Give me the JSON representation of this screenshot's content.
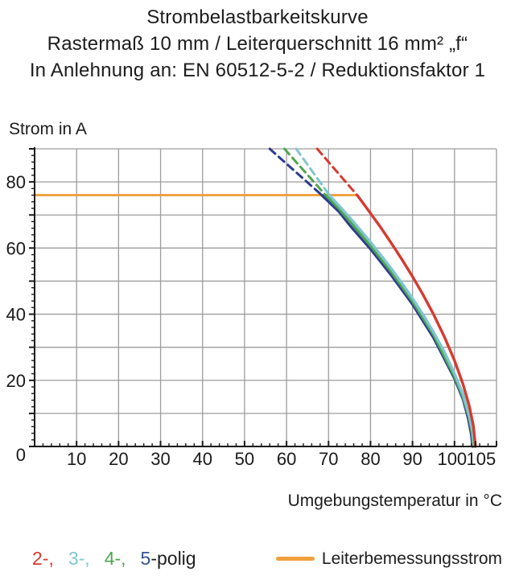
{
  "header": {
    "line1": "Strombelastbarkeitskurve",
    "line2": "Rastermaß 10 mm / Leiterquerschnitt 16 mm² „f“",
    "line3": "In Anlehnung an: EN 60512-5-2 / Reduktionsfaktor 1"
  },
  "chart_data": {
    "type": "line",
    "title": "Strombelastbarkeitskurve",
    "xlabel": "Umgebungstemperatur in °C",
    "ylabel": "Strom in A",
    "xlim": [
      0,
      110
    ],
    "ylim": [
      0,
      90
    ],
    "grid": true,
    "grid_step": 10,
    "minor_tick_step": 2,
    "x_tick_labels": [
      10,
      20,
      30,
      40,
      50,
      60,
      70,
      80,
      90,
      100,
      105
    ],
    "y_tick_labels": [
      0,
      20,
      40,
      60,
      80
    ],
    "grid_color": "#9c9c9c",
    "axis_color": "#1a1a1a",
    "legend_position": "bottom",
    "rated_current_line": {
      "label": "Leiterbemessungsstrom",
      "value": 76,
      "x_start": 0,
      "x_end": 76.8,
      "color": "#f0a03c"
    },
    "series": [
      {
        "name": "5-polig",
        "color": "#2e3b90",
        "dashed": [
          [
            56.0,
            90
          ],
          [
            68.4,
            76
          ]
        ],
        "solid": [
          [
            68.4,
            76
          ],
          [
            72.5,
            71.0
          ],
          [
            75,
            67.0
          ],
          [
            80,
            59.7
          ],
          [
            85,
            51.7
          ],
          [
            90,
            43.0
          ],
          [
            95,
            32.9
          ],
          [
            100,
            20.6
          ],
          [
            102,
            14.4
          ],
          [
            103.3,
            8.4
          ],
          [
            104,
            3.6
          ],
          [
            104.3,
            0
          ]
        ]
      },
      {
        "name": "4-polig",
        "color": "#4fa64d",
        "dashed": [
          [
            59.5,
            90
          ],
          [
            69.3,
            76
          ]
        ],
        "solid": [
          [
            69.3,
            76
          ],
          [
            72.5,
            71.9
          ],
          [
            75,
            68.1
          ],
          [
            80,
            60.7
          ],
          [
            85,
            52.7
          ],
          [
            90,
            43.9
          ],
          [
            95,
            33.8
          ],
          [
            100,
            21.2
          ],
          [
            102,
            15.0
          ],
          [
            103.5,
            8.6
          ],
          [
            104.2,
            3.8
          ],
          [
            104.5,
            0
          ]
        ]
      },
      {
        "name": "3-polig",
        "color": "#80c5d2",
        "dashed": [
          [
            62.3,
            90
          ],
          [
            70.2,
            76
          ]
        ],
        "solid": [
          [
            70.2,
            76
          ],
          [
            72.5,
            72.8
          ],
          [
            75,
            69.3
          ],
          [
            77.5,
            65.6
          ],
          [
            80,
            61.8
          ],
          [
            82.5,
            57.8
          ],
          [
            85,
            53.7
          ],
          [
            87.5,
            49.3
          ],
          [
            90,
            44.8
          ],
          [
            92.5,
            39.9
          ],
          [
            95,
            34.6
          ],
          [
            97.5,
            28.8
          ],
          [
            100,
            22.1
          ],
          [
            102,
            15.8
          ],
          [
            103.5,
            9.3
          ],
          [
            104.4,
            4.0
          ],
          [
            104.7,
            0
          ]
        ]
      },
      {
        "name": "2-polig",
        "color": "#d63a2f",
        "dashed": [
          [
            67.3,
            90
          ],
          [
            76.8,
            76
          ]
        ],
        "solid": [
          [
            76.8,
            76
          ],
          [
            78,
            74.0
          ],
          [
            80,
            70.5
          ],
          [
            82.5,
            66.1
          ],
          [
            85,
            61.4
          ],
          [
            87.5,
            56.5
          ],
          [
            90,
            51.4
          ],
          [
            92.5,
            45.9
          ],
          [
            95,
            40.0
          ],
          [
            97.5,
            33.4
          ],
          [
            100,
            26.0
          ],
          [
            102,
            18.9
          ],
          [
            103.5,
            12.3
          ],
          [
            104.5,
            6.2
          ],
          [
            105,
            0
          ]
        ]
      }
    ]
  },
  "legend": {
    "parts": [
      {
        "text": "2-,",
        "color": "#d63a2f"
      },
      {
        "text": "3-,",
        "color": "#80c5d2"
      },
      {
        "text": "4-,",
        "color": "#4fa64d"
      },
      {
        "text": "5",
        "color": "#33518e"
      },
      {
        "text": "-polig",
        "color": "#1e1e1e"
      }
    ],
    "rated_label": "Leiterbemessungsstrom"
  }
}
